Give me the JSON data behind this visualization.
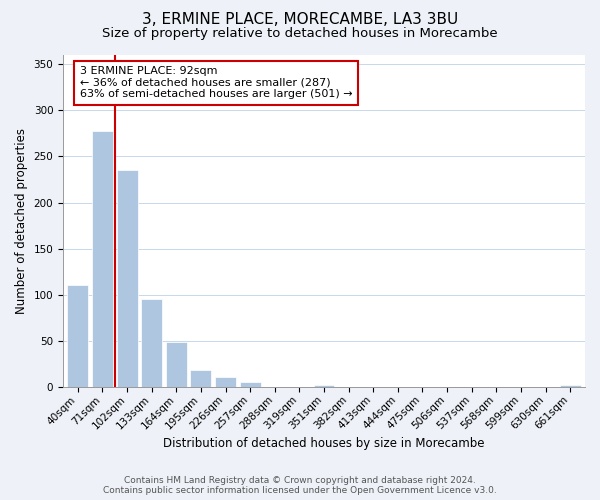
{
  "title": "3, ERMINE PLACE, MORECAMBE, LA3 3BU",
  "subtitle": "Size of property relative to detached houses in Morecambe",
  "xlabel": "Distribution of detached houses by size in Morecambe",
  "ylabel": "Number of detached properties",
  "bar_labels": [
    "40sqm",
    "71sqm",
    "102sqm",
    "133sqm",
    "164sqm",
    "195sqm",
    "226sqm",
    "257sqm",
    "288sqm",
    "319sqm",
    "351sqm",
    "382sqm",
    "413sqm",
    "444sqm",
    "475sqm",
    "506sqm",
    "537sqm",
    "568sqm",
    "599sqm",
    "630sqm",
    "661sqm"
  ],
  "bar_heights": [
    111,
    278,
    235,
    95,
    49,
    18,
    11,
    5,
    0,
    0,
    2,
    0,
    0,
    0,
    0,
    0,
    0,
    0,
    0,
    0,
    2
  ],
  "bar_color": "#aec6e0",
  "bar_edge_color": "#ffffff",
  "property_line_x": 1.5,
  "annotation_line1": "3 ERMINE PLACE: 92sqm",
  "annotation_line2": "← 36% of detached houses are smaller (287)",
  "annotation_line3": "63% of semi-detached houses are larger (501) →",
  "annotation_box_color": "#ffffff",
  "annotation_box_edge": "#cc0000",
  "property_vline_color": "#cc0000",
  "ylim": [
    0,
    360
  ],
  "yticks": [
    0,
    50,
    100,
    150,
    200,
    250,
    300,
    350
  ],
  "footer1": "Contains HM Land Registry data © Crown copyright and database right 2024.",
  "footer2": "Contains public sector information licensed under the Open Government Licence v3.0.",
  "background_color": "#eef2f8",
  "plot_bg_color": "#ffffff",
  "title_fontsize": 11,
  "subtitle_fontsize": 9.5,
  "axis_label_fontsize": 8.5,
  "tick_fontsize": 7.5,
  "annotation_fontsize": 8,
  "footer_fontsize": 6.5
}
